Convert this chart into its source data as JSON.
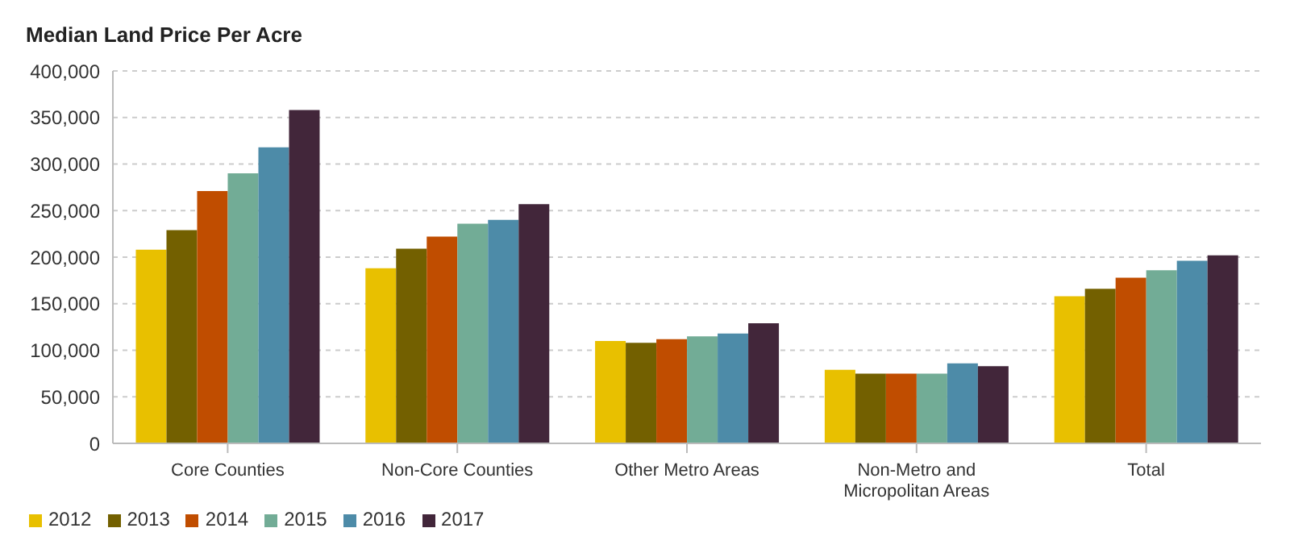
{
  "chart_data": {
    "type": "bar",
    "title": "Median Land Price Per Acre",
    "categories": [
      "Core Counties",
      "Non-Core Counties",
      "Other Metro Areas",
      "Non-Metro and Micropolitan Areas",
      "Total"
    ],
    "series": [
      {
        "name": "2012",
        "color": "#e8c000",
        "values": [
          208000,
          188000,
          110000,
          79000,
          158000
        ]
      },
      {
        "name": "2013",
        "color": "#736000",
        "values": [
          229000,
          209000,
          108000,
          75000,
          166000
        ]
      },
      {
        "name": "2014",
        "color": "#c04d00",
        "values": [
          271000,
          222000,
          112000,
          75000,
          178000
        ]
      },
      {
        "name": "2015",
        "color": "#72ac96",
        "values": [
          290000,
          236000,
          115000,
          75000,
          186000
        ]
      },
      {
        "name": "2016",
        "color": "#4d8ba8",
        "values": [
          318000,
          240000,
          118000,
          86000,
          196000
        ]
      },
      {
        "name": "2017",
        "color": "#42263a",
        "values": [
          358000,
          257000,
          129000,
          83000,
          202000
        ]
      }
    ],
    "ylim": [
      0,
      400000
    ],
    "yticks": [
      0,
      {
        "value": 50000,
        "label": "50,000"
      },
      {
        "value": 100000,
        "label": "100,000"
      },
      {
        "value": 150000,
        "label": "150,000"
      },
      {
        "value": 200000,
        "label": "200,000"
      },
      {
        "value": 250000,
        "label": "250,000"
      },
      {
        "value": 300000,
        "label": "300,000"
      },
      {
        "value": 350000,
        "label": "350,000"
      },
      {
        "value": 400000,
        "label": "400,000"
      }
    ],
    "grid": "y",
    "legend": "bottom left"
  }
}
